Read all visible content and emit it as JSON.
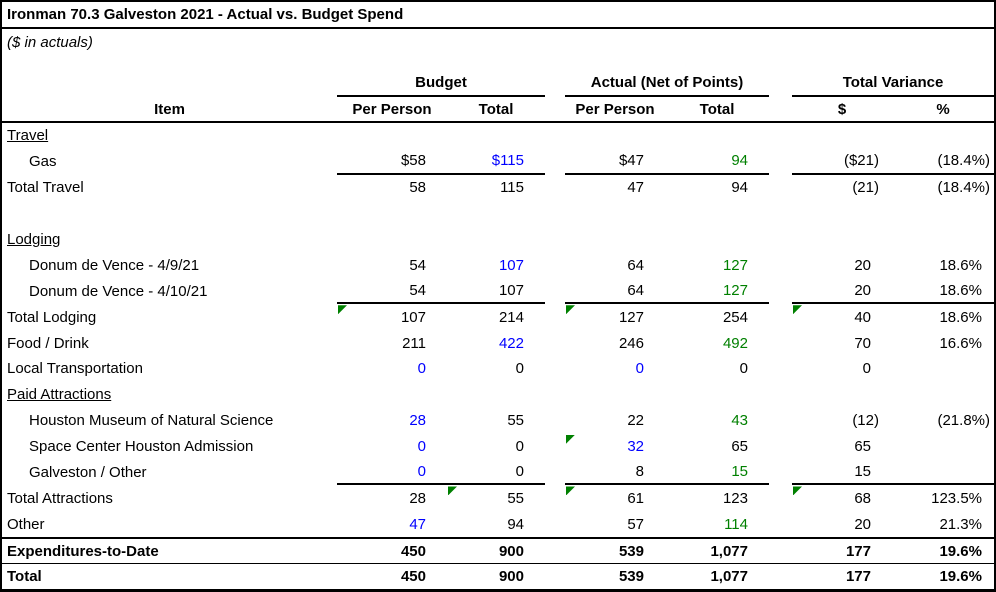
{
  "title": "Ironman 70.3 Galveston 2021 - Actual vs. Budget Spend",
  "subtitle": "($ in actuals)",
  "colors": {
    "black": "#000000",
    "blue": "#0000FF",
    "green": "#008000",
    "triangle": "#008000",
    "border": "#000000"
  },
  "header": {
    "item_label": "Item",
    "groups": [
      {
        "label": "Budget",
        "cols": [
          "Per Person",
          "Total"
        ]
      },
      {
        "label": "Actual (Net of Points)",
        "cols": [
          "Per Person",
          "Total"
        ]
      },
      {
        "label": "Total Variance",
        "cols": [
          "$",
          "%"
        ]
      }
    ]
  },
  "rows": [
    {
      "label": "Travel",
      "style": "section"
    },
    {
      "label": "Gas",
      "style": "item",
      "num_underline": true,
      "cells": [
        "$58",
        "$115",
        "$47",
        "94",
        "($21)",
        "(18.4%)"
      ],
      "cell_colors": [
        "black",
        "blue",
        "black",
        "green",
        "black",
        "black"
      ]
    },
    {
      "label": "Total Travel",
      "style": "plain",
      "cells": [
        "58",
        "115",
        "47",
        "94",
        "(21)",
        "(18.4%)"
      ],
      "cell_colors": [
        "black",
        "black",
        "black",
        "black",
        "black",
        "black"
      ]
    },
    {
      "label": "",
      "style": "blank"
    },
    {
      "label": "Lodging",
      "style": "section"
    },
    {
      "label": "Donum de Vence - 4/9/21",
      "style": "item",
      "cells": [
        "54",
        "107",
        "64",
        "127",
        "20",
        "18.6%"
      ],
      "cell_colors": [
        "black",
        "blue",
        "black",
        "green",
        "black",
        "black"
      ]
    },
    {
      "label": "Donum de Vence - 4/10/21",
      "style": "item",
      "num_underline": true,
      "cells": [
        "54",
        "107",
        "64",
        "127",
        "20",
        "18.6%"
      ],
      "cell_colors": [
        "black",
        "black",
        "black",
        "green",
        "black",
        "black"
      ]
    },
    {
      "label": "Total Lodging",
      "style": "plain",
      "triangles": [
        0,
        2,
        4
      ],
      "cells": [
        "107",
        "214",
        "127",
        "254",
        "40",
        "18.6%"
      ],
      "cell_colors": [
        "black",
        "black",
        "black",
        "black",
        "black",
        "black"
      ]
    },
    {
      "label": "Food / Drink",
      "style": "plain",
      "cells": [
        "211",
        "422",
        "246",
        "492",
        "70",
        "16.6%"
      ],
      "cell_colors": [
        "black",
        "blue",
        "black",
        "green",
        "black",
        "black"
      ]
    },
    {
      "label": "Local Transportation",
      "style": "plain",
      "cells": [
        "0",
        "0",
        "0",
        "0",
        "0",
        ""
      ],
      "cell_colors": [
        "blue",
        "black",
        "blue",
        "black",
        "black",
        "black"
      ]
    },
    {
      "label": "Paid Attractions",
      "style": "section"
    },
    {
      "label": "Houston Museum of Natural Science",
      "style": "item",
      "cells": [
        "28",
        "55",
        "22",
        "43",
        "(12)",
        "(21.8%)"
      ],
      "cell_colors": [
        "blue",
        "black",
        "black",
        "green",
        "black",
        "black"
      ]
    },
    {
      "label": "Space Center Houston Admission",
      "style": "item",
      "triangles": [
        2
      ],
      "cells": [
        "0",
        "0",
        "32",
        "65",
        "65",
        ""
      ],
      "cell_colors": [
        "blue",
        "black",
        "blue",
        "black",
        "black",
        "black"
      ]
    },
    {
      "label": "Galveston / Other",
      "style": "item",
      "num_underline": true,
      "cells": [
        "0",
        "0",
        "8",
        "15",
        "15",
        ""
      ],
      "cell_colors": [
        "blue",
        "black",
        "black",
        "green",
        "black",
        "black"
      ]
    },
    {
      "label": "Total Attractions",
      "style": "plain",
      "triangles": [
        1,
        2,
        4
      ],
      "cells": [
        "28",
        "55",
        "61",
        "123",
        "68",
        "123.5%"
      ],
      "cell_colors": [
        "black",
        "black",
        "black",
        "black",
        "black",
        "black"
      ]
    },
    {
      "label": "Other",
      "style": "plain",
      "cells": [
        "47",
        "94",
        "57",
        "114",
        "20",
        "21.3%"
      ],
      "cell_colors": [
        "blue",
        "black",
        "black",
        "green",
        "black",
        "black"
      ]
    },
    {
      "label": "Expenditures-to-Date",
      "style": "grand",
      "border_top": "thick",
      "cells": [
        "450",
        "900",
        "539",
        "1,077",
        "177",
        "19.6%"
      ],
      "cell_colors": [
        "black",
        "black",
        "black",
        "black",
        "black",
        "black"
      ]
    },
    {
      "label": "Total",
      "style": "grand",
      "border_top": "thin",
      "cells": [
        "450",
        "900",
        "539",
        "1,077",
        "177",
        "19.6%"
      ],
      "cell_colors": [
        "black",
        "black",
        "black",
        "black",
        "black",
        "black"
      ]
    }
  ]
}
